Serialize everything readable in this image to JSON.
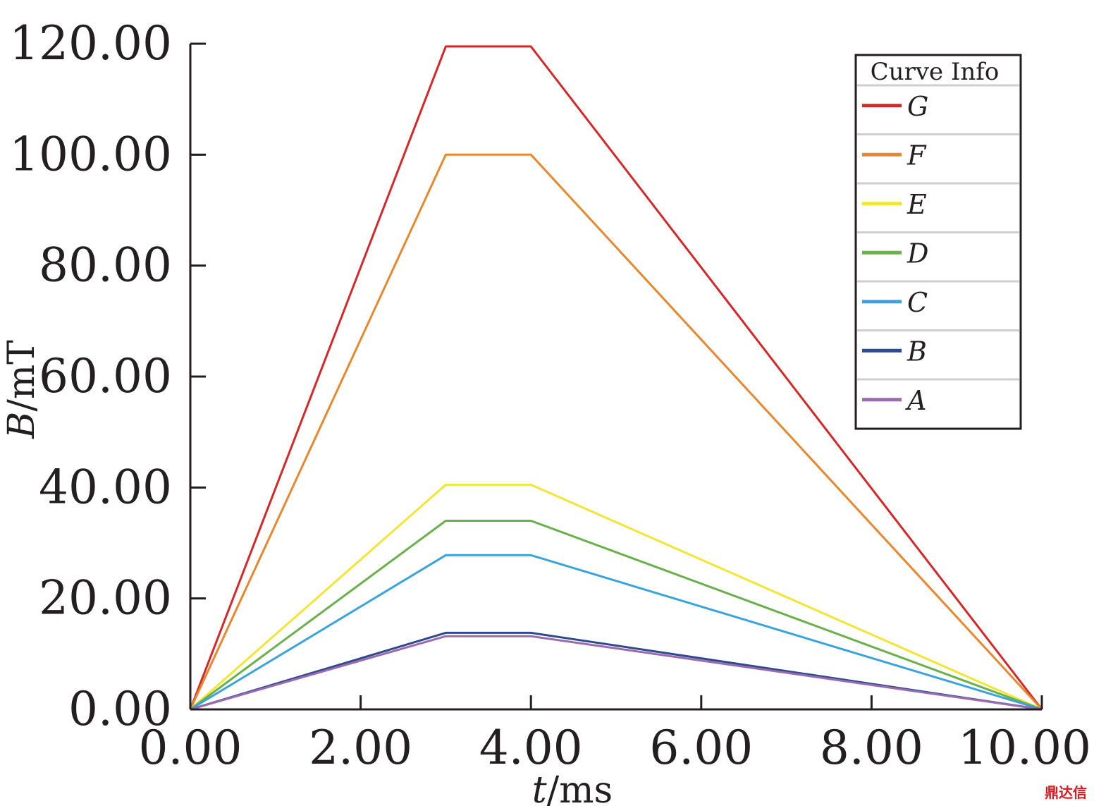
{
  "chart_data": {
    "type": "line",
    "xlabel_italic": "t",
    "xlabel_unit": "/ms",
    "ylabel_italic": "B",
    "ylabel_unit": "/mT",
    "xlim": [
      0,
      10
    ],
    "ylim": [
      0,
      120
    ],
    "x_ticks": [
      "0.00",
      "2.00",
      "4.00",
      "6.00",
      "8.00",
      "10.00"
    ],
    "y_ticks": [
      "0.00",
      "20.00",
      "40.00",
      "60.00",
      "80.00",
      "100.00",
      "120.00"
    ],
    "grid": false,
    "legend": {
      "title": "Curve Info",
      "placement": "top-right"
    },
    "x": [
      0,
      3,
      4,
      10
    ],
    "series": [
      {
        "name": "G",
        "color": "#d62728",
        "values": [
          0,
          119.5,
          119.5,
          0
        ]
      },
      {
        "name": "F",
        "color": "#e8872e",
        "values": [
          0,
          100,
          100,
          0
        ]
      },
      {
        "name": "E",
        "color": "#f2e536",
        "values": [
          0,
          40.5,
          40.5,
          0
        ]
      },
      {
        "name": "D",
        "color": "#6ab04c",
        "values": [
          0,
          34,
          34,
          0
        ]
      },
      {
        "name": "C",
        "color": "#3ba3db",
        "values": [
          0,
          27.8,
          27.8,
          0
        ]
      },
      {
        "name": "B",
        "color": "#2c4a8c",
        "values": [
          0,
          13.8,
          13.8,
          0
        ]
      },
      {
        "name": "A",
        "color": "#9b6bb0",
        "values": [
          0,
          13.2,
          13.2,
          0
        ]
      }
    ]
  },
  "watermark": "鼎达信"
}
